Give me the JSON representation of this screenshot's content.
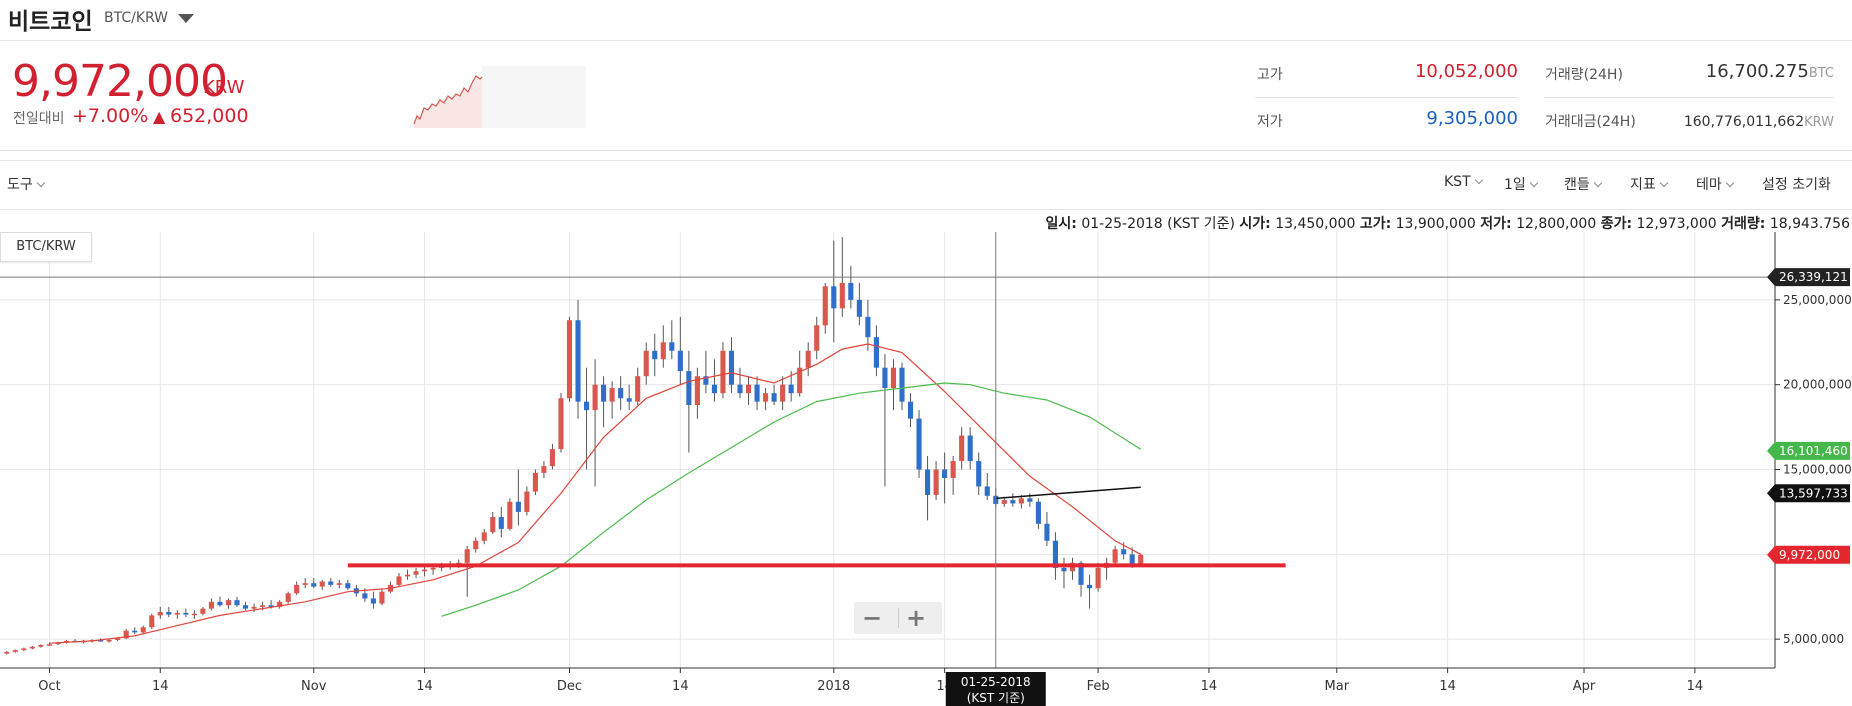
{
  "header": {
    "title": "비트코인",
    "pair": "BTC/KRW"
  },
  "summary": {
    "price": "9,972,000",
    "unit": "KRW",
    "change_label": "전일대비",
    "change_pct": "+7.00%",
    "change_arrow": "▲",
    "change_amt": "652,000",
    "high_label": "고가",
    "high": "10,052,000",
    "low_label": "저가",
    "low": "9,305,000",
    "volume_label": "거래량(24H)",
    "volume": "16,700.275",
    "volume_unit": "BTC",
    "value_label": "거래대금(24H)",
    "value": "160,776,011,662",
    "value_unit": "KRW"
  },
  "toolbar": {
    "tools": "도구",
    "timezone": "KST",
    "interval": "1일",
    "type": "캔들",
    "indicator": "지표",
    "theme": "테마",
    "reset": "설정 초기화"
  },
  "info": {
    "date_label": "일시:",
    "date": "01-25-2018 (KST 기준)",
    "open_label": "시가:",
    "open": "13,450,000",
    "high_label": "고가:",
    "high": "13,900,000",
    "low_label": "저가:",
    "low": "12,800,000",
    "close_label": "종가:",
    "close": "12,973,000",
    "volume_label": "거래량:",
    "volume": "18,943.756"
  },
  "chart_data": {
    "type": "candlestick",
    "pair": "BTC/KRW",
    "y_ticks": [
      5000000,
      10000000,
      15000000,
      20000000,
      25000000
    ],
    "y_tick_labels": [
      "5,000,000",
      "",
      "15,000,000",
      "20,000,000",
      "25,000,000"
    ],
    "ylim": [
      3300000,
      29000000
    ],
    "x_labels": [
      "Oct",
      "14",
      "Nov",
      "14",
      "Dec",
      "14",
      "2018",
      "14",
      "Feb",
      "14",
      "Mar",
      "14",
      "Apr",
      "14"
    ],
    "x_label_days": [
      5,
      18,
      36,
      49,
      66,
      79,
      97,
      110,
      128,
      141,
      156,
      169,
      185,
      198
    ],
    "xlim_days": [
      -0.8,
      207.4
    ],
    "candles": [
      [
        0,
        4150000,
        4300000,
        4100000,
        4250000
      ],
      [
        1,
        4250000,
        4400000,
        4200000,
        4350000
      ],
      [
        2,
        4350000,
        4500000,
        4300000,
        4450000
      ],
      [
        3,
        4450000,
        4600000,
        4400000,
        4550000
      ],
      [
        4,
        4550000,
        4700000,
        4500000,
        4650000
      ],
      [
        5,
        4650000,
        4800000,
        4600000,
        4700000
      ],
      [
        6,
        4700000,
        4850000,
        4650000,
        4800000
      ],
      [
        7,
        4800000,
        4950000,
        4750000,
        4900000
      ],
      [
        8,
        4900000,
        5000000,
        4800000,
        4850000
      ],
      [
        9,
        4850000,
        4950000,
        4750000,
        4900000
      ],
      [
        10,
        4900000,
        5000000,
        4800000,
        4950000
      ],
      [
        11,
        4950000,
        5050000,
        4850000,
        4900000
      ],
      [
        12,
        4900000,
        5000000,
        4800000,
        4950000
      ],
      [
        13,
        4950000,
        5100000,
        4900000,
        5050000
      ],
      [
        14,
        5050000,
        5600000,
        5000000,
        5500000
      ],
      [
        15,
        5500000,
        5700000,
        5300000,
        5400000
      ],
      [
        16,
        5400000,
        5800000,
        5300000,
        5700000
      ],
      [
        17,
        5700000,
        6500000,
        5600000,
        6400000
      ],
      [
        18,
        6400000,
        6900000,
        6200000,
        6600000
      ],
      [
        19,
        6600000,
        6900000,
        6300000,
        6450000
      ],
      [
        20,
        6450000,
        6700000,
        6200000,
        6550000
      ],
      [
        21,
        6550000,
        6800000,
        6300000,
        6450000
      ],
      [
        22,
        6450000,
        6700000,
        6200000,
        6500000
      ],
      [
        23,
        6500000,
        6900000,
        6400000,
        6800000
      ],
      [
        24,
        6800000,
        7400000,
        6700000,
        7200000
      ],
      [
        25,
        7200000,
        7500000,
        6900000,
        7000000
      ],
      [
        26,
        7000000,
        7400000,
        6800000,
        7300000
      ],
      [
        27,
        7300000,
        7500000,
        6900000,
        7000000
      ],
      [
        28,
        7000000,
        7200000,
        6700000,
        6800000
      ],
      [
        29,
        6800000,
        7100000,
        6600000,
        6900000
      ],
      [
        30,
        6900000,
        7200000,
        6700000,
        7000000
      ],
      [
        31,
        7000000,
        7300000,
        6800000,
        6900000
      ],
      [
        32,
        6900000,
        7300000,
        6800000,
        7200000
      ],
      [
        33,
        7200000,
        7800000,
        7100000,
        7700000
      ],
      [
        34,
        7700000,
        8400000,
        7600000,
        8200000
      ],
      [
        35,
        8200000,
        8600000,
        8000000,
        8300000
      ],
      [
        36,
        8300000,
        8600000,
        8000000,
        8100000
      ],
      [
        37,
        8100000,
        8500000,
        7900000,
        8400000
      ],
      [
        38,
        8400000,
        8600000,
        8100000,
        8200000
      ],
      [
        39,
        8200000,
        8500000,
        8000000,
        8300000
      ],
      [
        40,
        8300000,
        8500000,
        7900000,
        8000000
      ],
      [
        41,
        8000000,
        8200000,
        7500000,
        7700000
      ],
      [
        42,
        7700000,
        8000000,
        7200000,
        7400000
      ],
      [
        43,
        7400000,
        7800000,
        6800000,
        7100000
      ],
      [
        44,
        7100000,
        8000000,
        7000000,
        7800000
      ],
      [
        45,
        7800000,
        8400000,
        7700000,
        8200000
      ],
      [
        46,
        8200000,
        8900000,
        8100000,
        8700000
      ],
      [
        47,
        8700000,
        9100000,
        8500000,
        8800000
      ],
      [
        48,
        8800000,
        9200000,
        8600000,
        9000000
      ],
      [
        49,
        9000000,
        9300000,
        8700000,
        9100000
      ],
      [
        50,
        9100000,
        9400000,
        8800000,
        9200000
      ],
      [
        51,
        9200000,
        9500000,
        9000000,
        9300000
      ],
      [
        52,
        9300000,
        9600000,
        9100000,
        9400000
      ],
      [
        53,
        9400000,
        9700000,
        9200000,
        9500000
      ],
      [
        54,
        9500000,
        10500000,
        7500000,
        10300000
      ],
      [
        55,
        10300000,
        11000000,
        10100000,
        10800000
      ],
      [
        56,
        10800000,
        11500000,
        10600000,
        11300000
      ],
      [
        57,
        11300000,
        12500000,
        11200000,
        12200000
      ],
      [
        58,
        12200000,
        12800000,
        11000000,
        11500000
      ],
      [
        59,
        11500000,
        13300000,
        11400000,
        13100000
      ],
      [
        60,
        13100000,
        15000000,
        11700000,
        12500000
      ],
      [
        61,
        12500000,
        14000000,
        12300000,
        13700000
      ],
      [
        62,
        13700000,
        15000000,
        13500000,
        14800000
      ],
      [
        63,
        14800000,
        15500000,
        14500000,
        15200000
      ],
      [
        64,
        15200000,
        16500000,
        15000000,
        16200000
      ],
      [
        65,
        16200000,
        19500000,
        16000000,
        19200000
      ],
      [
        66,
        19200000,
        24000000,
        19000000,
        23800000
      ],
      [
        67,
        23800000,
        25000000,
        18000000,
        19000000
      ],
      [
        68,
        19000000,
        21000000,
        15000000,
        18500000
      ],
      [
        69,
        18500000,
        21500000,
        14000000,
        20000000
      ],
      [
        70,
        20000000,
        20500000,
        17500000,
        19000000
      ],
      [
        71,
        19000000,
        20200000,
        18000000,
        19800000
      ],
      [
        72,
        19800000,
        20500000,
        18500000,
        19200000
      ],
      [
        73,
        19200000,
        20000000,
        18500000,
        19000000
      ],
      [
        74,
        19000000,
        21000000,
        18800000,
        20500000
      ],
      [
        75,
        20500000,
        22500000,
        20000000,
        22000000
      ],
      [
        76,
        22000000,
        23000000,
        20500000,
        21500000
      ],
      [
        77,
        21500000,
        23500000,
        21000000,
        22500000
      ],
      [
        78,
        22500000,
        23800000,
        21500000,
        22000000
      ],
      [
        79,
        22000000,
        24000000,
        20000000,
        20800000
      ],
      [
        80,
        20800000,
        22000000,
        16000000,
        18800000
      ],
      [
        81,
        18800000,
        21000000,
        18000000,
        20500000
      ],
      [
        82,
        20500000,
        22000000,
        19500000,
        20000000
      ],
      [
        83,
        20000000,
        21500000,
        19000000,
        19500000
      ],
      [
        84,
        19500000,
        22500000,
        19200000,
        22000000
      ],
      [
        85,
        22000000,
        22800000,
        19500000,
        20000000
      ],
      [
        86,
        20000000,
        21000000,
        19200000,
        19500000
      ],
      [
        87,
        19500000,
        20500000,
        18800000,
        20000000
      ],
      [
        88,
        20000000,
        20500000,
        18500000,
        19000000
      ],
      [
        89,
        19000000,
        19800000,
        18500000,
        19500000
      ],
      [
        90,
        19500000,
        20000000,
        18800000,
        19000000
      ],
      [
        91,
        19000000,
        20500000,
        18500000,
        20000000
      ],
      [
        92,
        20000000,
        20800000,
        19000000,
        19500000
      ],
      [
        93,
        19500000,
        22000000,
        19300000,
        21000000
      ],
      [
        94,
        21000000,
        22500000,
        20500000,
        22000000
      ],
      [
        95,
        22000000,
        24000000,
        21500000,
        23500000
      ],
      [
        96,
        23500000,
        26000000,
        23000000,
        25800000
      ],
      [
        97,
        25800000,
        28500000,
        22500000,
        24500000
      ],
      [
        98,
        24500000,
        28700000,
        24000000,
        26000000
      ],
      [
        99,
        26000000,
        27000000,
        24500000,
        25000000
      ],
      [
        100,
        25000000,
        26000000,
        23500000,
        24000000
      ],
      [
        101,
        24000000,
        25000000,
        22000000,
        22800000
      ],
      [
        102,
        22800000,
        23500000,
        20500000,
        21000000
      ],
      [
        103,
        21000000,
        21800000,
        14000000,
        19800000
      ],
      [
        104,
        19800000,
        21500000,
        18500000,
        21000000
      ],
      [
        105,
        21000000,
        21300000,
        18500000,
        19000000
      ],
      [
        106,
        19000000,
        19500000,
        17500000,
        18000000
      ],
      [
        107,
        18000000,
        18500000,
        14500000,
        15000000
      ],
      [
        108,
        15000000,
        15800000,
        12000000,
        13500000
      ],
      [
        109,
        13500000,
        15500000,
        13200000,
        15000000
      ],
      [
        110,
        15000000,
        16000000,
        13000000,
        14500000
      ],
      [
        111,
        14500000,
        15800000,
        13500000,
        15500000
      ],
      [
        112,
        15500000,
        17500000,
        15000000,
        17000000
      ],
      [
        113,
        17000000,
        17500000,
        15000000,
        15500000
      ],
      [
        114,
        15500000,
        16000000,
        13500000,
        14000000
      ],
      [
        115,
        14000000,
        14800000,
        13200000,
        13450000
      ],
      [
        116,
        13450000,
        13900000,
        12800000,
        12973000
      ],
      [
        117,
        12973000,
        13400000,
        12800000,
        13200000
      ],
      [
        118,
        13200000,
        13600000,
        12800000,
        13000000
      ],
      [
        119,
        13000000,
        13500000,
        12700000,
        13300000
      ],
      [
        120,
        13300000,
        13600000,
        12800000,
        13100000
      ],
      [
        121,
        13100000,
        13300000,
        11500000,
        11800000
      ],
      [
        122,
        11800000,
        12500000,
        10500000,
        10800000
      ],
      [
        123,
        10800000,
        11300000,
        8500000,
        9200000
      ],
      [
        124,
        9200000,
        9800000,
        8000000,
        9000000
      ],
      [
        125,
        9000000,
        9800000,
        8500000,
        9500000
      ],
      [
        126,
        9500000,
        9600000,
        7500000,
        8200000
      ],
      [
        127,
        8200000,
        8800000,
        6800000,
        8000000
      ],
      [
        128,
        8000000,
        9500000,
        7800000,
        9200000
      ],
      [
        129,
        9200000,
        9800000,
        8500000,
        9500000
      ],
      [
        130,
        9500000,
        10500000,
        9300000,
        10300000
      ],
      [
        131,
        10300000,
        10700000,
        9700000,
        10000000
      ],
      [
        132,
        10000000,
        10400000,
        9200000,
        9320000
      ],
      [
        133,
        9320000,
        10052000,
        9305000,
        9972000
      ]
    ],
    "ma_red": [
      [
        5,
        4760000
      ],
      [
        10,
        4900000
      ],
      [
        15,
        5200000
      ],
      [
        20,
        5800000
      ],
      [
        25,
        6400000
      ],
      [
        30,
        6800000
      ],
      [
        35,
        7200000
      ],
      [
        40,
        7800000
      ],
      [
        45,
        8000000
      ],
      [
        50,
        8500000
      ],
      [
        55,
        9300000
      ],
      [
        60,
        10700000
      ],
      [
        65,
        13600000
      ],
      [
        70,
        16900000
      ],
      [
        75,
        19200000
      ],
      [
        80,
        20200000
      ],
      [
        85,
        20700000
      ],
      [
        90,
        20100000
      ],
      [
        95,
        21200000
      ],
      [
        98,
        22100000
      ],
      [
        101,
        22400000
      ],
      [
        105,
        21900000
      ],
      [
        110,
        19600000
      ],
      [
        115,
        17100000
      ],
      [
        120,
        14600000
      ],
      [
        125,
        12800000
      ],
      [
        130,
        10800000
      ],
      [
        133,
        10000000
      ]
    ],
    "ma_green": [
      [
        51,
        6350000
      ],
      [
        55,
        7000000
      ],
      [
        60,
        7900000
      ],
      [
        65,
        9300000
      ],
      [
        70,
        11300000
      ],
      [
        75,
        13200000
      ],
      [
        80,
        14800000
      ],
      [
        85,
        16300000
      ],
      [
        90,
        17800000
      ],
      [
        95,
        19000000
      ],
      [
        100,
        19500000
      ],
      [
        105,
        19800000
      ],
      [
        110,
        20100000
      ],
      [
        113,
        20000000
      ],
      [
        117,
        19500000
      ],
      [
        122,
        19100000
      ],
      [
        127,
        18100000
      ],
      [
        133,
        16200000
      ]
    ],
    "support_line": {
      "from_day": 40,
      "to_day": 150,
      "value": 9350000
    },
    "trend_line": {
      "points": [
        [
          116,
          13300000
        ],
        [
          133,
          13950000
        ]
      ]
    },
    "crosshair": {
      "day": 116,
      "value": 26339121
    },
    "price_tags": [
      {
        "value": 26339121,
        "label": "26,339,121",
        "color": "#222222"
      },
      {
        "value": 16101460,
        "label": "16,101,460",
        "color": "#46b84b"
      },
      {
        "value": 13597733,
        "label": "13,597,733",
        "color": "#111111"
      },
      {
        "value": 9972000,
        "label": "9,972,000",
        "color": "#e4262f"
      }
    ],
    "crosshair_date": [
      "01-25-2018",
      "(KST 기준)"
    ],
    "colors": {
      "up": "#d9574d",
      "down": "#2f6fcb",
      "ma_red": "#e0443a",
      "ma_green": "#4cbb4c",
      "support": "#e4262f",
      "grid": "#e7e7e7"
    }
  },
  "zoom": {
    "minus": "−",
    "plus": "+"
  }
}
